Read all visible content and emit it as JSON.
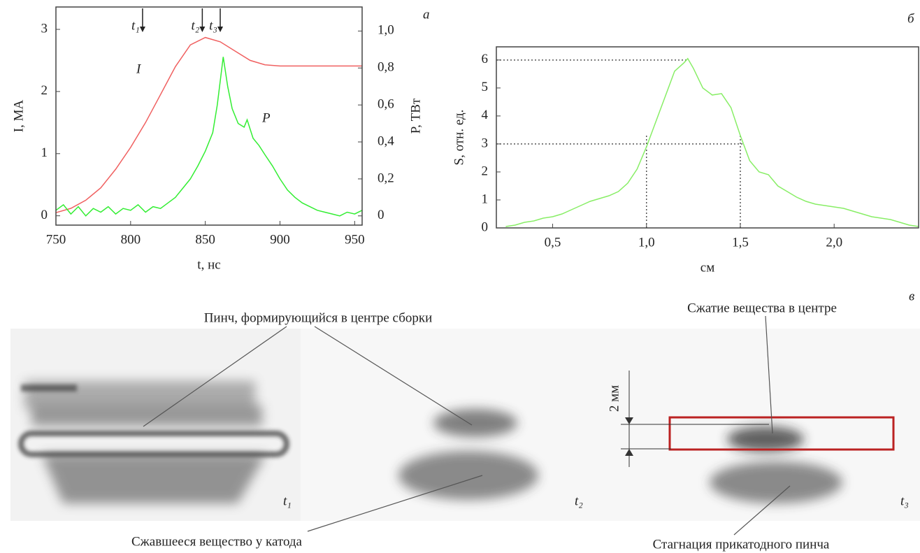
{
  "chart_data": [
    {
      "type": "line",
      "panel": "а",
      "xlabel": "t, нс",
      "ylabel": "I, МА",
      "y2label": "P, ТВт",
      "xlim": [
        750,
        955
      ],
      "xticks": [
        750,
        800,
        850,
        900,
        950
      ],
      "ylim": [
        -0.15,
        3.36
      ],
      "yticks": [
        0,
        1,
        2,
        3
      ],
      "y2lim": [
        -0.05,
        1.13
      ],
      "y2ticks": [
        0,
        {
          "value": 0.2,
          "label": "0,2"
        },
        {
          "value": 0.4,
          "label": "0,4"
        },
        {
          "value": 0.6,
          "label": "0,6"
        },
        {
          "value": 0.8,
          "label": "0,8"
        },
        {
          "value": 1.0,
          "label": "1,0"
        }
      ],
      "markers": [
        {
          "label": "t₁",
          "x": 808
        },
        {
          "label": "t₂",
          "x": 848
        },
        {
          "label": "t₃",
          "x": 860
        }
      ],
      "series": [
        {
          "name": "I",
          "color": "#f06060",
          "x": [
            750,
            760,
            770,
            780,
            790,
            800,
            810,
            820,
            830,
            840,
            850,
            860,
            870,
            880,
            890,
            900,
            910,
            920,
            930,
            940,
            950,
            955
          ],
          "values": [
            0.05,
            0.12,
            0.25,
            0.45,
            0.75,
            1.1,
            1.5,
            1.95,
            2.4,
            2.75,
            2.87,
            2.8,
            2.65,
            2.5,
            2.43,
            2.41,
            2.41,
            2.41,
            2.41,
            2.41,
            2.41,
            2.41
          ]
        },
        {
          "name": "P",
          "color": "#33ee33",
          "axis": "y2",
          "x": [
            750,
            755,
            760,
            765,
            770,
            775,
            780,
            785,
            790,
            795,
            800,
            805,
            810,
            815,
            820,
            825,
            830,
            835,
            840,
            845,
            850,
            855,
            858,
            862,
            865,
            868,
            872,
            876,
            878,
            882,
            886,
            890,
            895,
            900,
            905,
            910,
            915,
            920,
            925,
            930,
            935,
            940,
            945,
            950,
            955
          ],
          "values": [
            0.03,
            0.06,
            0.01,
            0.05,
            0.0,
            0.04,
            0.02,
            0.05,
            0.01,
            0.04,
            0.03,
            0.06,
            0.02,
            0.05,
            0.04,
            0.07,
            0.1,
            0.15,
            0.2,
            0.27,
            0.35,
            0.45,
            0.6,
            0.86,
            0.7,
            0.58,
            0.5,
            0.48,
            0.52,
            0.42,
            0.38,
            0.33,
            0.27,
            0.2,
            0.14,
            0.1,
            0.07,
            0.05,
            0.03,
            0.02,
            0.01,
            0.0,
            0.02,
            0.01,
            0.03
          ]
        }
      ]
    },
    {
      "type": "line",
      "panel": "б",
      "xlabel": "см",
      "ylabel": "S, отн. ед.",
      "xlim": [
        0.2,
        2.45
      ],
      "xticks": [
        {
          "value": 0.5,
          "label": "0,5"
        },
        {
          "value": 1.0,
          "label": "1,0"
        },
        {
          "value": 1.5,
          "label": "1,5"
        },
        {
          "value": 2.0,
          "label": "2,0"
        }
      ],
      "ylim": [
        0,
        6.47
      ],
      "yticks": [
        0,
        1,
        2,
        3,
        4,
        5,
        6
      ],
      "hlines": [
        {
          "y": 6,
          "x": 1.22
        },
        {
          "y": 3,
          "x": 1.52
        }
      ],
      "vlines": [
        {
          "x": 1.0,
          "y": 3.3
        },
        {
          "x": 1.5,
          "y": 3.3
        }
      ],
      "series": [
        {
          "color": "#88ee66",
          "x": [
            0.25,
            0.3,
            0.35,
            0.4,
            0.45,
            0.5,
            0.55,
            0.6,
            0.65,
            0.7,
            0.75,
            0.8,
            0.85,
            0.9,
            0.95,
            1.0,
            1.05,
            1.1,
            1.15,
            1.2,
            1.22,
            1.25,
            1.3,
            1.35,
            1.4,
            1.45,
            1.5,
            1.55,
            1.6,
            1.65,
            1.7,
            1.75,
            1.8,
            1.85,
            1.9,
            1.95,
            2.0,
            2.05,
            2.1,
            2.15,
            2.2,
            2.25,
            2.3,
            2.35,
            2.4,
            2.45
          ],
          "values": [
            0.05,
            0.1,
            0.2,
            0.25,
            0.35,
            0.4,
            0.5,
            0.65,
            0.8,
            0.95,
            1.05,
            1.15,
            1.3,
            1.6,
            2.1,
            2.9,
            3.8,
            4.7,
            5.6,
            5.9,
            6.05,
            5.7,
            5.0,
            4.75,
            4.8,
            4.3,
            3.3,
            2.4,
            2.0,
            1.9,
            1.5,
            1.3,
            1.1,
            0.95,
            0.85,
            0.8,
            0.75,
            0.7,
            0.6,
            0.5,
            0.4,
            0.35,
            0.3,
            0.2,
            0.1,
            0.05
          ]
        }
      ]
    }
  ],
  "images": {
    "panel": "в",
    "captions": [
      "Пинч, формирующийся в центре сборки",
      "Сжавшееся вещество у катода",
      "Сжатие вещества в центре",
      "Стагнация прикатодного пинча"
    ],
    "time_labels": [
      "t₁",
      "t₂",
      "t₃"
    ],
    "scale": "2 мм"
  }
}
